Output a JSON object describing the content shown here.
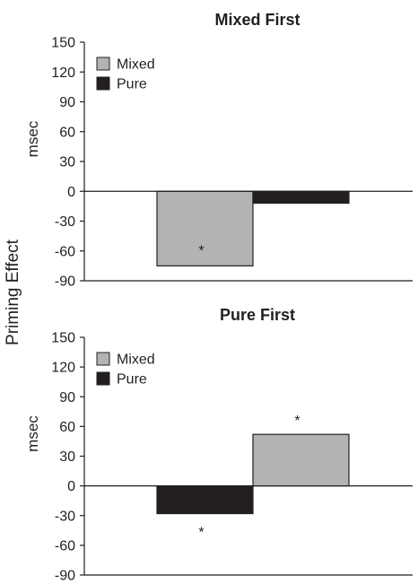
{
  "shared_ylabel": "Priming Effect",
  "chart_data": [
    {
      "type": "bar",
      "title": "Mixed First",
      "ylabel": "msec",
      "ylim": [
        -90,
        150
      ],
      "yticks": [
        150,
        120,
        90,
        60,
        30,
        0,
        -30,
        -60,
        -90
      ],
      "grid": false,
      "legend_position": "top-left",
      "legend": [
        {
          "name": "Mixed",
          "color": "#b3b3b3"
        },
        {
          "name": "Pure",
          "color": "#231f20"
        }
      ],
      "series": [
        {
          "name": "Mixed",
          "color": "#b3b3b3",
          "value": -75,
          "annotation": "*"
        },
        {
          "name": "Pure",
          "color": "#231f20",
          "value": -12,
          "annotation": ""
        }
      ]
    },
    {
      "type": "bar",
      "title": "Pure First",
      "ylabel": "msec",
      "ylim": [
        -90,
        150
      ],
      "yticks": [
        150,
        120,
        90,
        60,
        30,
        0,
        -30,
        -60,
        -90
      ],
      "grid": false,
      "legend_position": "top-left",
      "legend": [
        {
          "name": "Mixed",
          "color": "#b3b3b3"
        },
        {
          "name": "Pure",
          "color": "#231f20"
        }
      ],
      "series": [
        {
          "name": "Pure",
          "color": "#231f20",
          "value": -28,
          "annotation": "*"
        },
        {
          "name": "Mixed",
          "color": "#b3b3b3",
          "value": 52,
          "annotation": "*"
        }
      ]
    }
  ]
}
